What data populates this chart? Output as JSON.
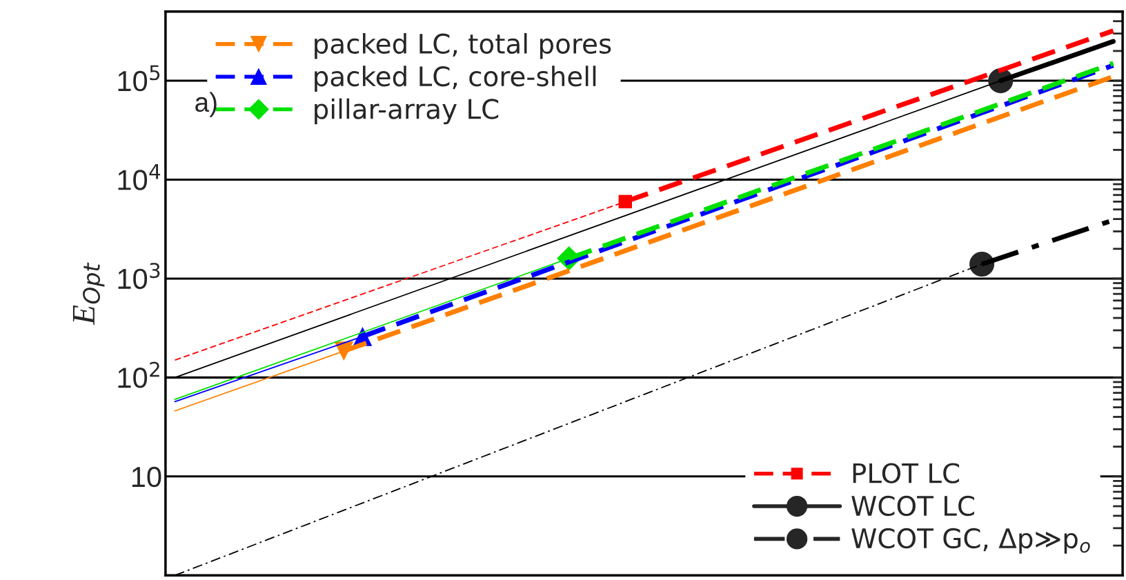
{
  "chart_data": {
    "type": "line",
    "categories": [
      null,
      null,
      null,
      null,
      null,
      null,
      null,
      null,
      null,
      null,
      null,
      null,
      null,
      null,
      null,
      null,
      null,
      null,
      null,
      null,
      null,
      null,
      null,
      null,
      null,
      null,
      null,
      null,
      null,
      null,
      null,
      null,
      null,
      null,
      null,
      null,
      null,
      null,
      null,
      null,
      null,
      null,
      null,
      null,
      null,
      null,
      null,
      null,
      null,
      null,
      null
    ],
    "ylabel": "E$_{Opt}$",
    "log": "y",
    "ylim": [
      1,
      500000
    ],
    "yticks": [
      {
        "value": 10,
        "label": "10"
      },
      {
        "value": 100,
        "label": "10$^{2}$"
      },
      {
        "value": 1000,
        "label": "10$^{3}$"
      },
      {
        "value": 10000,
        "label": "10$^{4}$"
      },
      {
        "value": 100000,
        "label": "10$^{5}$"
      }
    ],
    "grid": "y",
    "legend": [
      "top left",
      "top left",
      "top left",
      "bottom right",
      "bottom right",
      "bottom right"
    ],
    "tick_labels": "y",
    "annotations": [
      "a)"
    ],
    "series": [
      {
        "color": "#ff8000",
        "line_style": "solid",
        "values": [
          46,
          null,
          null,
          null,
          null,
          null,
          null,
          null,
          null,
          185,
          null,
          null,
          null,
          null,
          null,
          null,
          null,
          null,
          null,
          null,
          null,
          null,
          null,
          null,
          null,
          null,
          null,
          null,
          null,
          null,
          null,
          null,
          null,
          null,
          null,
          null,
          null,
          null,
          null,
          null,
          null,
          null,
          null,
          null,
          null,
          null,
          null,
          null,
          null,
          null,
          null
        ]
      },
      {
        "color": "#ff8000",
        "line_style": "dashed",
        "values": [
          null,
          null,
          null,
          null,
          null,
          null,
          null,
          null,
          null,
          185,
          null,
          null,
          null,
          null,
          null,
          null,
          null,
          null,
          null,
          null,
          null,
          null,
          null,
          null,
          null,
          null,
          null,
          null,
          null,
          null,
          null,
          null,
          null,
          null,
          null,
          null,
          null,
          null,
          null,
          null,
          null,
          null,
          null,
          null,
          null,
          null,
          null,
          null,
          null,
          null,
          110000
        ]
      },
      {
        "name": "packed LC, total pores",
        "type": "scatter",
        "color": "#ff8000",
        "marker": "triangle_down",
        "values": [
          null,
          null,
          null,
          null,
          null,
          null,
          null,
          null,
          null,
          185,
          null,
          null,
          null,
          null,
          null,
          null,
          null,
          null,
          null,
          null,
          null,
          null,
          null,
          null,
          null,
          null,
          null,
          null,
          null,
          null,
          null,
          null,
          null,
          null,
          null,
          null,
          null,
          null,
          null,
          null,
          null,
          null,
          null,
          null,
          null,
          null,
          null,
          null,
          null,
          null,
          null
        ]
      },
      {
        "color": "#0000ff",
        "line_style": "solid",
        "values": [
          57,
          null,
          null,
          null,
          null,
          null,
          null,
          null,
          null,
          null,
          260,
          null,
          null,
          null,
          null,
          null,
          null,
          null,
          null,
          null,
          null,
          null,
          null,
          null,
          null,
          null,
          null,
          null,
          null,
          null,
          null,
          null,
          null,
          null,
          null,
          null,
          null,
          null,
          null,
          null,
          null,
          null,
          null,
          null,
          null,
          null,
          null,
          null,
          null,
          null,
          null
        ]
      },
      {
        "color": "#0000ff",
        "line_style": "dashed",
        "values": [
          null,
          null,
          null,
          null,
          null,
          null,
          null,
          null,
          null,
          null,
          260,
          null,
          null,
          null,
          null,
          null,
          null,
          null,
          null,
          null,
          null,
          null,
          null,
          null,
          null,
          null,
          null,
          null,
          null,
          null,
          null,
          null,
          null,
          null,
          null,
          null,
          null,
          null,
          null,
          null,
          null,
          null,
          null,
          null,
          null,
          null,
          null,
          null,
          null,
          null,
          143000
        ]
      },
      {
        "name": "packed LC, core-shell",
        "type": "scatter",
        "color": "#0000ff",
        "marker": "triangle",
        "values": [
          null,
          null,
          null,
          null,
          null,
          null,
          null,
          null,
          null,
          null,
          260,
          null,
          null,
          null,
          null,
          null,
          null,
          null,
          null,
          null,
          null,
          null,
          null,
          null,
          null,
          null,
          null,
          null,
          null,
          null,
          null,
          null,
          null,
          null,
          null,
          null,
          null,
          null,
          null,
          null,
          null,
          null,
          null,
          null,
          null,
          null,
          null,
          null,
          null,
          null,
          null
        ]
      },
      {
        "color": "#00e000",
        "line_style": "solid",
        "values": [
          60,
          null,
          null,
          null,
          null,
          null,
          null,
          null,
          null,
          null,
          null,
          null,
          null,
          null,
          null,
          null,
          null,
          null,
          null,
          null,
          null,
          1600,
          null,
          null,
          null,
          null,
          null,
          null,
          null,
          null,
          null,
          null,
          null,
          null,
          null,
          null,
          null,
          null,
          null,
          null,
          null,
          null,
          null,
          null,
          null,
          null,
          null,
          null,
          null,
          null,
          null
        ]
      },
      {
        "color": "#00e000",
        "line_style": "dashed",
        "values": [
          null,
          null,
          null,
          null,
          null,
          null,
          null,
          null,
          null,
          null,
          null,
          null,
          null,
          null,
          null,
          null,
          null,
          null,
          null,
          null,
          null,
          1600,
          null,
          null,
          null,
          null,
          null,
          null,
          null,
          null,
          null,
          null,
          null,
          null,
          null,
          null,
          null,
          null,
          null,
          null,
          null,
          null,
          null,
          null,
          null,
          null,
          null,
          null,
          null,
          null,
          150000
        ]
      },
      {
        "name": "pillar-array LC",
        "type": "scatter",
        "color": "#00e000",
        "marker": "diamond",
        "values": [
          null,
          null,
          null,
          null,
          null,
          null,
          null,
          null,
          null,
          null,
          null,
          null,
          null,
          null,
          null,
          null,
          null,
          null,
          null,
          null,
          null,
          1600,
          null,
          null,
          null,
          null,
          null,
          null,
          null,
          null,
          null,
          null,
          null,
          null,
          null,
          null,
          null,
          null,
          null,
          null,
          null,
          null,
          null,
          null,
          null,
          null,
          null,
          null,
          null,
          null,
          null
        ]
      },
      {
        "color": "#ff0000",
        "line_style": "dashed",
        "values": [
          150,
          null,
          null,
          null,
          null,
          null,
          null,
          null,
          null,
          null,
          null,
          null,
          null,
          null,
          null,
          null,
          null,
          null,
          null,
          null,
          null,
          null,
          null,
          null,
          6000,
          null,
          null,
          null,
          null,
          null,
          null,
          null,
          null,
          null,
          null,
          null,
          null,
          null,
          null,
          null,
          null,
          null,
          null,
          null,
          null,
          null,
          null,
          null,
          null,
          null,
          null
        ]
      },
      {
        "color": "#ff0000",
        "line_style": "dashed",
        "values": [
          null,
          null,
          null,
          null,
          null,
          null,
          null,
          null,
          null,
          null,
          null,
          null,
          null,
          null,
          null,
          null,
          null,
          null,
          null,
          null,
          null,
          null,
          null,
          null,
          6000,
          null,
          null,
          null,
          null,
          null,
          null,
          null,
          null,
          null,
          null,
          null,
          null,
          null,
          null,
          null,
          null,
          null,
          null,
          null,
          null,
          null,
          null,
          null,
          null,
          null,
          320000
        ]
      },
      {
        "name": "PLOT LC",
        "type": "scatter",
        "color": "#ff0000",
        "marker": "square",
        "values": [
          null,
          null,
          null,
          null,
          null,
          null,
          null,
          null,
          null,
          null,
          null,
          null,
          null,
          null,
          null,
          null,
          null,
          null,
          null,
          null,
          null,
          null,
          null,
          null,
          6000,
          null,
          null,
          null,
          null,
          null,
          null,
          null,
          null,
          null,
          null,
          null,
          null,
          null,
          null,
          null,
          null,
          null,
          null,
          null,
          null,
          null,
          null,
          null,
          null,
          null,
          null
        ]
      },
      {
        "color": "#000000",
        "line_style": "solid",
        "values": [
          100,
          null,
          null,
          null,
          null,
          null,
          null,
          null,
          null,
          null,
          null,
          null,
          null,
          null,
          null,
          null,
          null,
          null,
          null,
          null,
          null,
          null,
          null,
          null,
          null,
          null,
          null,
          null,
          null,
          null,
          null,
          null,
          null,
          null,
          null,
          null,
          null,
          null,
          null,
          null,
          null,
          null,
          null,
          null,
          100000,
          null,
          null,
          null,
          null,
          null,
          null
        ]
      },
      {
        "color": "#000000",
        "line_style": "solid",
        "values": [
          null,
          null,
          null,
          null,
          null,
          null,
          null,
          null,
          null,
          null,
          null,
          null,
          null,
          null,
          null,
          null,
          null,
          null,
          null,
          null,
          null,
          null,
          null,
          null,
          null,
          null,
          null,
          null,
          null,
          null,
          null,
          null,
          null,
          null,
          null,
          null,
          null,
          null,
          null,
          null,
          null,
          null,
          null,
          null,
          100000,
          null,
          null,
          null,
          null,
          null,
          250000
        ]
      },
      {
        "name": "WCOT LC",
        "type": "scatter",
        "color": "#262626",
        "marker": "circle",
        "values": [
          null,
          null,
          null,
          null,
          null,
          null,
          null,
          null,
          null,
          null,
          null,
          null,
          null,
          null,
          null,
          null,
          null,
          null,
          null,
          null,
          null,
          null,
          null,
          null,
          null,
          null,
          null,
          null,
          null,
          null,
          null,
          null,
          null,
          null,
          null,
          null,
          null,
          null,
          null,
          null,
          null,
          null,
          null,
          null,
          100000,
          null,
          null,
          null,
          null,
          null,
          null
        ]
      },
      {
        "color": "#000000",
        "line_style": "dashdot",
        "values": [
          1,
          null,
          null,
          null,
          null,
          null,
          null,
          null,
          null,
          null,
          null,
          null,
          null,
          null,
          null,
          null,
          null,
          null,
          null,
          null,
          null,
          null,
          null,
          null,
          null,
          null,
          null,
          null,
          null,
          null,
          null,
          null,
          null,
          null,
          null,
          null,
          null,
          null,
          null,
          null,
          null,
          null,
          null,
          1400,
          null,
          null,
          null,
          null,
          null,
          null,
          null
        ]
      },
      {
        "color": "#000000",
        "line_style": "dashdot",
        "values": [
          null,
          null,
          null,
          null,
          null,
          null,
          null,
          null,
          null,
          null,
          null,
          null,
          null,
          null,
          null,
          null,
          null,
          null,
          null,
          null,
          null,
          null,
          null,
          null,
          null,
          null,
          null,
          null,
          null,
          null,
          null,
          null,
          null,
          null,
          null,
          null,
          null,
          null,
          null,
          null,
          null,
          null,
          null,
          1400,
          null,
          null,
          null,
          null,
          null,
          null,
          3900
        ]
      },
      {
        "name": "WCOT GC, Δp≫p$_{o}$",
        "type": "scatter",
        "color": "#262626",
        "marker": "circle",
        "values": [
          null,
          null,
          null,
          null,
          null,
          null,
          null,
          null,
          null,
          null,
          null,
          null,
          null,
          null,
          null,
          null,
          null,
          null,
          null,
          null,
          null,
          null,
          null,
          null,
          null,
          null,
          null,
          null,
          null,
          null,
          null,
          null,
          null,
          null,
          null,
          null,
          null,
          null,
          null,
          null,
          null,
          null,
          null,
          1400,
          null,
          null,
          null,
          null,
          null,
          null,
          null
        ]
      }
    ]
  }
}
